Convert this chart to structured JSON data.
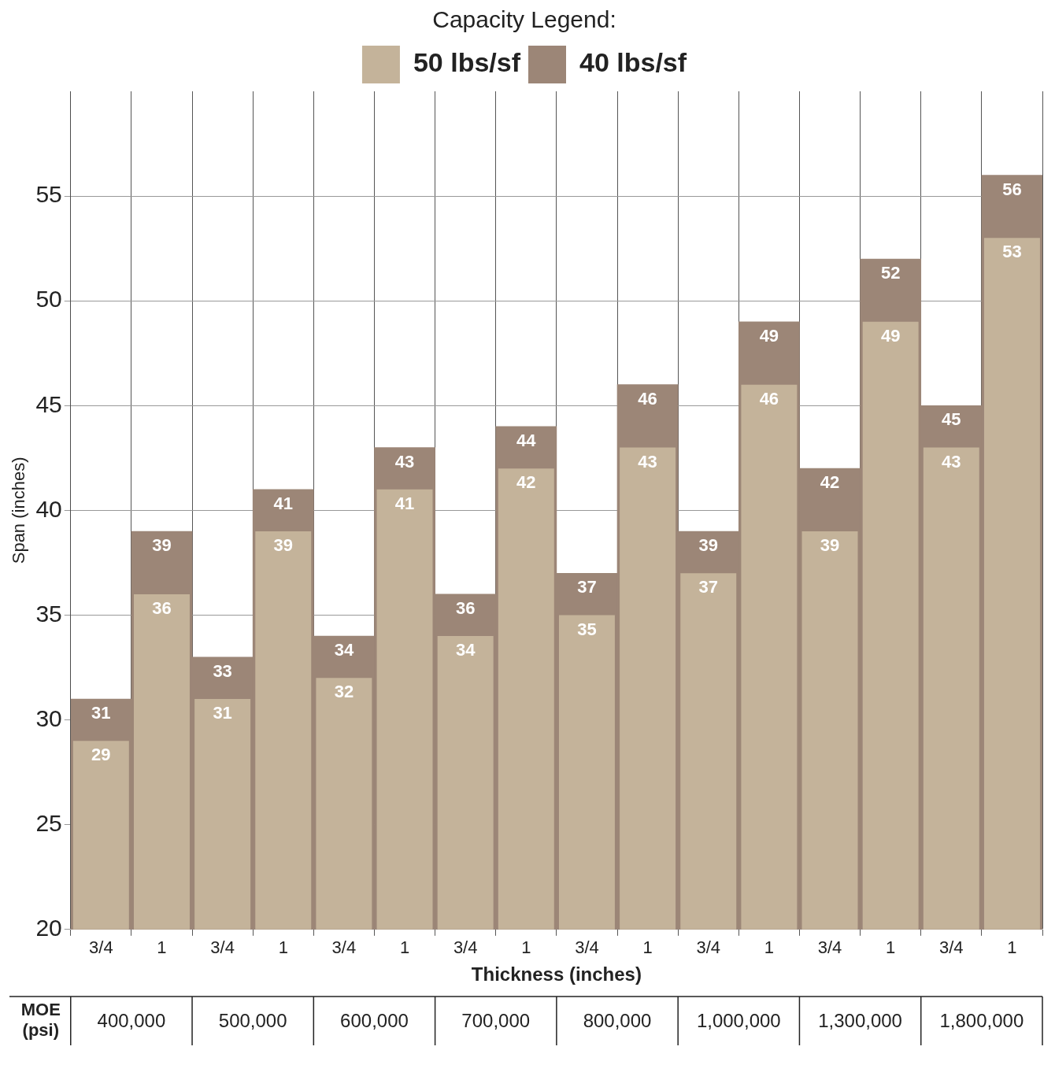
{
  "chart_data": {
    "type": "bar",
    "categories": [
      "3/4",
      "1",
      "3/4",
      "1",
      "3/4",
      "1",
      "3/4",
      "1",
      "3/4",
      "1",
      "3/4",
      "1",
      "3/4",
      "1",
      "3/4",
      "1"
    ],
    "series": [
      {
        "name": "40 lbs/sf",
        "color": "#9c8677",
        "values": [
          31,
          39,
          33,
          41,
          34,
          43,
          36,
          44,
          37,
          46,
          39,
          49,
          42,
          52,
          45,
          56
        ]
      },
      {
        "name": "50 lbs/sf",
        "color": "#c4b39a",
        "values": [
          29,
          36,
          31,
          39,
          32,
          41,
          34,
          42,
          35,
          43,
          37,
          46,
          39,
          49,
          43,
          53
        ]
      }
    ],
    "xlabel": "Thickness (inches)",
    "ylabel": "Span (inches)",
    "legend_title": "Capacity Legend:",
    "ylim": [
      20,
      60
    ],
    "yticks": [
      20,
      25,
      30,
      35,
      40,
      45,
      50,
      55
    ],
    "grid": true,
    "legend": "top",
    "data_labels": true,
    "annotations": [
      "MOE (psi)",
      "400,000",
      "500,000",
      "600,000",
      "700,000",
      "800,000",
      "1,000,000",
      "1,300,000",
      "1,800,000"
    ]
  }
}
